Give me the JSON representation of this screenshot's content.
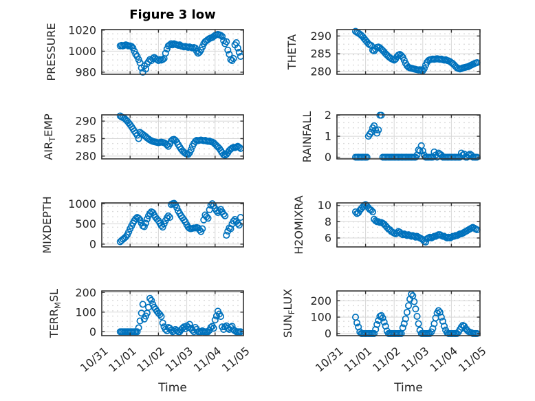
{
  "figure": {
    "title": "Figure 3 low",
    "xlabel": "Time",
    "x_tick_labels": [
      "10/31",
      "11/01",
      "11/02",
      "11/03",
      "11/04",
      "11/05"
    ],
    "marker": "open-circle",
    "colors": {
      "marker": "#0072BD",
      "axis": "#333333",
      "grid": "#d7d7d7",
      "minor_dot": "#c6c6c6",
      "text": "#262626",
      "background": "#ffffff"
    }
  },
  "chart_data": [
    {
      "type": "scatter",
      "ylabel": "PRESSURE",
      "ylabel_parts": [
        {
          "t": "PRESSURE"
        }
      ],
      "yticks": [
        980,
        1000,
        1020
      ],
      "ylim": [
        978,
        1020.5
      ],
      "xlim_days": [
        0,
        5
      ],
      "x_days_start": 0.65,
      "x_days_step": 0.05,
      "values": [
        1005,
        1005.5,
        1005,
        1005.5,
        1006,
        1005.5,
        1005,
        1005,
        1004.5,
        1003,
        1000,
        997,
        995,
        992,
        989,
        984,
        980,
        986,
        983,
        988,
        990,
        992,
        991,
        993,
        994,
        993,
        992,
        991,
        992,
        991.5,
        992,
        993,
        998,
        1002,
        1005,
        1006,
        1007,
        1006,
        1007,
        1006.5,
        1006,
        1005.5,
        1006,
        1005,
        1004.5,
        1004,
        1004.5,
        1004,
        1003.5,
        1004,
        1003.5,
        1003,
        1003.5,
        1003,
        1000,
        998,
        999,
        1001,
        1004,
        1007,
        1009,
        1010,
        1011,
        1012,
        1012.5,
        1013,
        1014,
        1015,
        1015.5,
        1016,
        1015.5,
        1015,
        1014,
        1010,
        1007,
        1009,
        1001,
        997,
        992,
        991,
        993,
        1006,
        1008,
        1003,
        999,
        995
      ]
    },
    {
      "type": "scatter",
      "ylabel": "THETA",
      "ylabel_parts": [
        {
          "t": "THETA"
        }
      ],
      "yticks": [
        280,
        285,
        290
      ],
      "ylim": [
        279.2,
        291.8
      ],
      "xlim_days": [
        0,
        5
      ],
      "x_days_start": 0.65,
      "x_days_step": 0.05,
      "values": [
        291.3,
        291.0,
        290.8,
        290.5,
        290.2,
        289.8,
        289.3,
        288.8,
        288.3,
        287.8,
        287.5,
        287.3,
        286.0,
        285.8,
        286.3,
        286.8,
        286.9,
        286.7,
        286.3,
        285.9,
        285.5,
        285.0,
        284.6,
        284.2,
        283.9,
        283.6,
        283.4,
        283.2,
        283.5,
        284.2,
        284.6,
        284.8,
        284.5,
        284.0,
        283.2,
        282.3,
        281.6,
        281.2,
        281.0,
        280.9,
        280.8,
        280.7,
        280.6,
        280.5,
        280.4,
        280.5,
        280.3,
        280.2,
        280.8,
        281.8,
        282.6,
        283.1,
        283.3,
        283.4,
        283.5,
        283.4,
        283.5,
        283.6,
        283.5,
        283.4,
        283.5,
        283.3,
        283.2,
        283.3,
        283.1,
        283.0,
        282.8,
        282.5,
        282.2,
        281.8,
        281.4,
        281.0,
        280.8,
        280.7,
        280.8,
        281.0,
        281.1,
        281.2,
        281.3,
        281.4,
        281.6,
        281.8,
        282.0,
        282.2,
        282.4,
        282.5
      ]
    },
    {
      "type": "scatter",
      "ylabel": "AIR_TEMP",
      "ylabel_parts": [
        {
          "t": "AIR"
        },
        {
          "t": "T",
          "sub": true
        },
        {
          "t": "EMP"
        }
      ],
      "yticks": [
        280,
        285,
        290
      ],
      "ylim": [
        279.2,
        291.8
      ],
      "xlim_days": [
        0,
        5
      ],
      "x_days_start": 0.65,
      "x_days_step": 0.05,
      "values": [
        291.5,
        291.2,
        291.0,
        290.8,
        290.4,
        290.0,
        289.5,
        289.0,
        288.4,
        287.8,
        287.2,
        286.6,
        286.0,
        285.0,
        286.8,
        286.5,
        286.2,
        285.9,
        285.6,
        285.2,
        284.9,
        284.6,
        284.4,
        284.2,
        284.1,
        284.0,
        283.9,
        283.8,
        283.9,
        284.0,
        283.9,
        283.8,
        283.6,
        283.2,
        282.8,
        283.5,
        284.3,
        284.7,
        284.8,
        284.5,
        284.0,
        283.3,
        282.6,
        282.0,
        281.5,
        281.1,
        280.8,
        280.6,
        280.5,
        281.0,
        281.8,
        282.8,
        283.6,
        284.2,
        284.5,
        284.4,
        284.5,
        284.6,
        284.5,
        284.4,
        284.5,
        284.3,
        284.2,
        284.3,
        284.1,
        284.0,
        283.8,
        283.4,
        283.0,
        282.6,
        282.2,
        281.6,
        281.0,
        280.4,
        280.2,
        280.5,
        281.0,
        281.6,
        282.0,
        282.3,
        282.5,
        282.4,
        282.6,
        282.8,
        282.5,
        282.2
      ]
    },
    {
      "type": "scatter",
      "ylabel": "RAINFALL",
      "ylabel_parts": [
        {
          "t": "RAINFALL"
        }
      ],
      "yticks": [
        0,
        1,
        2
      ],
      "ylim": [
        -0.08,
        2.02
      ],
      "xlim_days": [
        0,
        5
      ],
      "x_days_start": 0.65,
      "x_days_step": 0.05,
      "values": [
        0,
        0,
        0,
        0,
        0,
        0,
        0,
        0,
        0,
        1.0,
        1.1,
        1.2,
        1.4,
        1.5,
        1.3,
        1.15,
        1.3,
        2.0,
        2.0,
        0,
        0,
        0,
        0,
        0,
        0,
        0,
        0,
        0,
        0,
        0,
        0,
        0,
        0,
        0,
        0,
        0,
        0,
        0,
        0,
        0,
        0,
        0,
        0,
        0.1,
        0.35,
        0.3,
        0.55,
        0.3,
        0.1,
        0,
        0,
        0,
        0,
        0,
        0,
        0.25,
        0.1,
        0,
        0.2,
        0.15,
        0.1,
        0,
        0,
        0,
        0,
        0,
        0,
        0,
        0,
        0,
        0,
        0,
        0,
        0,
        0.2,
        0.1,
        0.15,
        0,
        0,
        0.1,
        0.15,
        0.1,
        0,
        0,
        0,
        0
      ]
    },
    {
      "type": "scatter",
      "ylabel": "MIXDEPTH",
      "ylabel_parts": [
        {
          "t": "MIXDEPTH"
        }
      ],
      "yticks": [
        0,
        500,
        1000
      ],
      "ylim": [
        -70,
        1020
      ],
      "xlim_days": [
        0,
        5
      ],
      "x_days_start": 0.65,
      "x_days_step": 0.05,
      "values": [
        60,
        90,
        120,
        150,
        180,
        230,
        300,
        380,
        450,
        520,
        580,
        630,
        660,
        640,
        600,
        520,
        450,
        430,
        520,
        620,
        700,
        760,
        800,
        780,
        720,
        660,
        620,
        580,
        520,
        460,
        420,
        500,
        580,
        650,
        700,
        660,
        980,
        1000,
        1010,
        970,
        900,
        820,
        760,
        700,
        650,
        600,
        550,
        480,
        420,
        390,
        380,
        390,
        400,
        400,
        410,
        400,
        350,
        310,
        380,
        600,
        720,
        680,
        640,
        850,
        960,
        1000,
        950,
        880,
        820,
        780,
        820,
        860,
        800,
        740,
        700,
        220,
        320,
        400,
        380,
        500,
        570,
        610,
        560,
        510,
        470,
        660
      ]
    },
    {
      "type": "scatter",
      "ylabel": "H2OMIXRA",
      "ylabel_parts": [
        {
          "t": "H2OMIXRA"
        }
      ],
      "yticks": [
        6,
        8,
        10
      ],
      "ylim": [
        4.9,
        10.3
      ],
      "xlim_days": [
        0,
        5
      ],
      "x_days_start": 0.65,
      "x_days_step": 0.05,
      "values": [
        9.2,
        9.0,
        9.1,
        9.4,
        9.6,
        9.8,
        10.0,
        10.1,
        9.9,
        9.7,
        9.5,
        9.4,
        9.2,
        8.3,
        8.1,
        8.0,
        8.0,
        7.9,
        7.9,
        7.8,
        7.7,
        7.5,
        7.3,
        7.1,
        7.0,
        6.8,
        6.7,
        6.6,
        6.5,
        6.6,
        6.8,
        6.7,
        6.5,
        6.4,
        6.5,
        6.4,
        6.3,
        6.4,
        6.3,
        6.2,
        6.3,
        6.2,
        6.1,
        6.2,
        6.1,
        6.0,
        5.9,
        5.8,
        5.6,
        5.5,
        5.9,
        6.0,
        6.1,
        6.0,
        6.1,
        6.2,
        6.2,
        6.3,
        6.4,
        6.4,
        6.3,
        6.2,
        6.2,
        6.1,
        6.0,
        6.1,
        6.0,
        6.1,
        6.2,
        6.2,
        6.3,
        6.3,
        6.4,
        6.5,
        6.5,
        6.6,
        6.7,
        6.8,
        6.9,
        7.0,
        7.1,
        7.2,
        7.3,
        7.2,
        7.1,
        7.0
      ]
    },
    {
      "type": "scatter",
      "ylabel": "TERR_MSL",
      "ylabel_parts": [
        {
          "t": "TERR"
        },
        {
          "t": "M",
          "sub": true
        },
        {
          "t": "SL"
        }
      ],
      "yticks": [
        0,
        100,
        200
      ],
      "ylim": [
        -20,
        208
      ],
      "xlim_days": [
        0,
        5
      ],
      "x_days_start": 0.65,
      "x_days_step": 0.05,
      "values": [
        0,
        0,
        0,
        0,
        0,
        0,
        0,
        0,
        0,
        0,
        0,
        0,
        0,
        20,
        55,
        95,
        140,
        65,
        80,
        95,
        125,
        170,
        160,
        140,
        125,
        115,
        105,
        95,
        88,
        78,
        45,
        25,
        12,
        5,
        22,
        18,
        8,
        0,
        3,
        12,
        6,
        0,
        0,
        10,
        18,
        25,
        15,
        30,
        22,
        38,
        18,
        8,
        0,
        22,
        12,
        0,
        0,
        0,
        5,
        0,
        0,
        0,
        0,
        8,
        22,
        28,
        18,
        60,
        80,
        105,
        90,
        78,
        25,
        12,
        25,
        30,
        18,
        12,
        22,
        28,
        10,
        5,
        0,
        0,
        0,
        0
      ]
    },
    {
      "type": "scatter",
      "ylabel": "SUN_FLUX",
      "ylabel_parts": [
        {
          "t": "SUN"
        },
        {
          "t": "F",
          "sub": true
        },
        {
          "t": "LUX"
        }
      ],
      "yticks": [
        0,
        100,
        200
      ],
      "ylim": [
        -13,
        260
      ],
      "xlim_days": [
        0,
        5
      ],
      "x_days_start": 0.65,
      "x_days_step": 0.05,
      "values": [
        100,
        65,
        40,
        10,
        0,
        0,
        0,
        0,
        0,
        0,
        0,
        0,
        0,
        0,
        25,
        55,
        80,
        105,
        110,
        95,
        70,
        45,
        15,
        0,
        0,
        0,
        0,
        0,
        0,
        0,
        0,
        0,
        0,
        35,
        60,
        90,
        130,
        170,
        210,
        240,
        230,
        195,
        150,
        105,
        60,
        20,
        0,
        0,
        0,
        0,
        0,
        0,
        0,
        10,
        30,
        60,
        95,
        125,
        140,
        130,
        100,
        75,
        45,
        20,
        5,
        0,
        0,
        0,
        0,
        0,
        0,
        0,
        10,
        25,
        40,
        50,
        45,
        30,
        20,
        12,
        8,
        5,
        0,
        0,
        0,
        0
      ]
    }
  ]
}
